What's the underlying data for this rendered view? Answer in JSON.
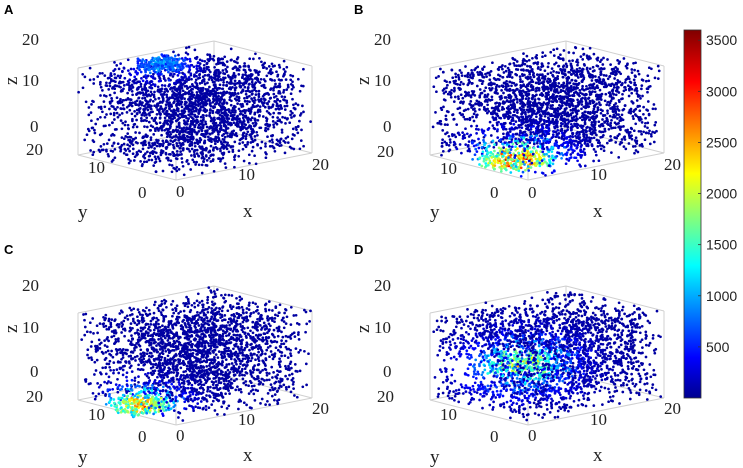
{
  "chart_data": [
    {
      "type": "scatter",
      "panel": "A",
      "projection": "3d",
      "xlabel": "x",
      "ylabel": "y",
      "zlabel": "z",
      "xlim": [
        0,
        20
      ],
      "ylim": [
        0,
        20
      ],
      "zlim": [
        0,
        20
      ],
      "x_ticks": [
        "0",
        "10",
        "20"
      ],
      "y_ticks": [
        "0",
        "10",
        "20"
      ],
      "z_ticks": [
        "0",
        "10",
        "20"
      ],
      "grid": true,
      "hotspot": {
        "x": 8,
        "y": 14,
        "z": 20,
        "peak": 1200,
        "spread": 2.5
      }
    },
    {
      "type": "scatter",
      "panel": "B",
      "projection": "3d",
      "xlabel": "x",
      "ylabel": "y",
      "zlabel": "z",
      "xlim": [
        0,
        20
      ],
      "ylim": [
        0,
        20
      ],
      "zlim": [
        0,
        20
      ],
      "x_ticks": [
        "0",
        "10",
        "20"
      ],
      "y_ticks": [
        "0",
        "10",
        "20"
      ],
      "z_ticks": [
        "0",
        "10",
        "20"
      ],
      "grid": true,
      "hotspot": {
        "x": 4,
        "y": 8,
        "z": 1,
        "peak": 3500,
        "spread": 3.5
      }
    },
    {
      "type": "scatter",
      "panel": "C",
      "projection": "3d",
      "xlabel": "x",
      "ylabel": "y",
      "zlabel": "z",
      "xlim": [
        0,
        20
      ],
      "ylim": [
        0,
        20
      ],
      "zlim": [
        0,
        20
      ],
      "x_ticks": [
        "0",
        "10",
        "20"
      ],
      "y_ticks": [
        "0",
        "10",
        "20"
      ],
      "z_ticks": [
        "0",
        "10",
        "20"
      ],
      "grid": true,
      "hotspot": {
        "x": 2,
        "y": 10,
        "z": 1,
        "peak": 3000,
        "spread": 3.0
      }
    },
    {
      "type": "scatter",
      "panel": "D",
      "projection": "3d",
      "xlabel": "x",
      "ylabel": "y",
      "zlabel": "z",
      "xlim": [
        0,
        20
      ],
      "ylim": [
        0,
        20
      ],
      "zlim": [
        0,
        20
      ],
      "x_ticks": [
        "0",
        "10",
        "20"
      ],
      "y_ticks": [
        "0",
        "10",
        "20"
      ],
      "z_ticks": [
        "0",
        "10",
        "20"
      ],
      "grid": true,
      "hotspot": {
        "x": 8,
        "y": 12,
        "z": 8,
        "peak": 2500,
        "spread": 4.0
      }
    }
  ],
  "colorbar": {
    "colormap": "jet",
    "range": [
      0,
      3600
    ],
    "ticks": [
      "500",
      "1000",
      "1500",
      "2000",
      "2500",
      "3000",
      "3500"
    ],
    "tick_values": [
      500,
      1000,
      1500,
      2000,
      2500,
      3000,
      3500
    ]
  },
  "colors": {
    "low": "#00008f",
    "high": "#800000"
  }
}
